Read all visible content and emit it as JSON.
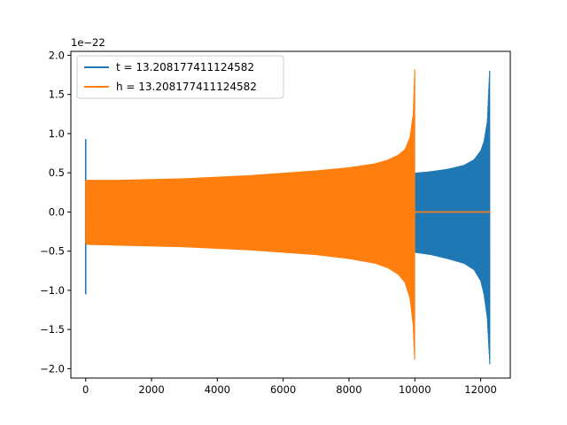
{
  "chart_data": {
    "type": "line",
    "title": "",
    "xlabel": "",
    "ylabel": "",
    "y_scale_label": "1e−22",
    "xlim": [
      -450,
      12900
    ],
    "ylim": [
      -2.12,
      2.05
    ],
    "x_ticks": [
      0,
      2000,
      4000,
      6000,
      8000,
      10000,
      12000
    ],
    "x_tick_labels": [
      "0",
      "2000",
      "4000",
      "6000",
      "8000",
      "10000",
      "12000"
    ],
    "y_ticks": [
      -2.0,
      -1.5,
      -1.0,
      -0.5,
      0.0,
      0.5,
      1.0,
      1.5,
      2.0
    ],
    "y_tick_labels": [
      "−2.0",
      "−1.5",
      "−1.0",
      "−0.5",
      "0.0",
      "0.5",
      "1.0",
      "1.5",
      "2.0"
    ],
    "grid": false,
    "legend_position": "top-left",
    "series": [
      {
        "name": "t = 13.208177411124582",
        "color": "#1f77b4",
        "start_spike": {
          "x": 0,
          "upper": 0.93,
          "lower": -1.05
        },
        "envelope": {
          "x": [
            0,
            1000,
            2000,
            3000,
            4000,
            5000,
            6000,
            7000,
            8000,
            9000,
            10000,
            10500,
            11000,
            11500,
            11800,
            12000,
            12100,
            12200,
            12280
          ],
          "upper": [
            0.0,
            0.33,
            0.35,
            0.36,
            0.37,
            0.385,
            0.4,
            0.42,
            0.44,
            0.47,
            0.5,
            0.52,
            0.55,
            0.6,
            0.67,
            0.78,
            0.9,
            1.15,
            1.87
          ],
          "lower": [
            0.0,
            -0.33,
            -0.35,
            -0.36,
            -0.37,
            -0.385,
            -0.4,
            -0.42,
            -0.44,
            -0.47,
            -0.52,
            -0.55,
            -0.6,
            -0.66,
            -0.74,
            -0.88,
            -1.05,
            -1.35,
            -1.97
          ]
        },
        "end_x": 12300
      },
      {
        "name": "h = 13.208177411124582",
        "color": "#ff7f0e",
        "envelope": {
          "x": [
            0,
            50,
            1000,
            2000,
            3000,
            4000,
            5000,
            6000,
            7000,
            8000,
            8800,
            9200,
            9500,
            9700,
            9850,
            9950,
            10000
          ],
          "upper": [
            0.4,
            0.41,
            0.41,
            0.42,
            0.43,
            0.45,
            0.47,
            0.5,
            0.53,
            0.57,
            0.62,
            0.67,
            0.73,
            0.8,
            0.95,
            1.25,
            1.87
          ],
          "lower": [
            -0.4,
            -0.42,
            -0.43,
            -0.44,
            -0.45,
            -0.47,
            -0.49,
            -0.52,
            -0.55,
            -0.6,
            -0.66,
            -0.72,
            -0.8,
            -0.9,
            -1.1,
            -1.45,
            -1.97
          ]
        },
        "flat_after": {
          "x_start": 10000,
          "x_end": 12300,
          "y": 0.0
        }
      }
    ]
  }
}
